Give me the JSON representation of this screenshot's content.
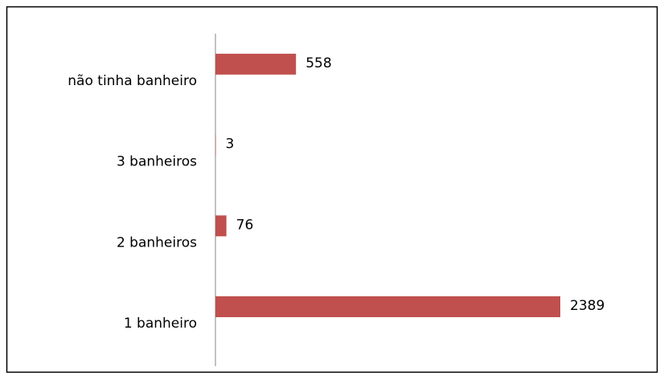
{
  "chart_data": {
    "type": "bar",
    "orientation": "horizontal",
    "categories": [
      "1 banheiro",
      "2 banheiros",
      "3 banheiros",
      "não tinha banheiro"
    ],
    "values": [
      2389,
      76,
      3,
      558
    ],
    "color": "#c0504d"
  }
}
